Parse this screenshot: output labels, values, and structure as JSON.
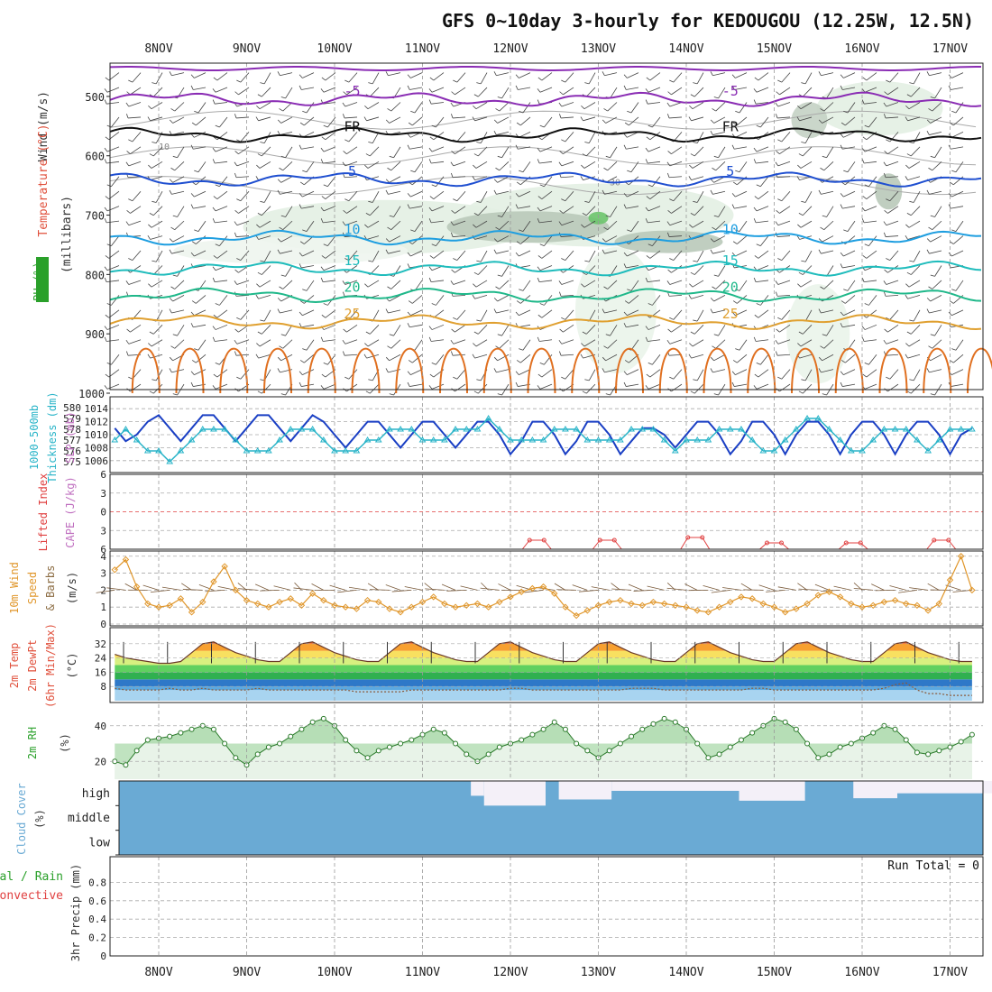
{
  "title": "GFS 0~10day 3-hourly for KEDOUGOU (12.25W, 12.5N)",
  "colors": {
    "temperature_label": "#e0503c",
    "wind_label": "#333333",
    "rh_label": "#2aa02a",
    "slp": "#1a3fc4",
    "thickness": "#29b4c8",
    "lifted_index": "#e04040",
    "cape": "#c070c0",
    "wind10m": "#e0962a",
    "cloud": "#6aaad4",
    "precip_total": "#2aa02a",
    "precip_conv": "#e04040",
    "rh_fill": "#7cc47c",
    "iso_m5": "#8a2cb4",
    "iso_fr": "#111111",
    "iso_5": "#1f4fd0",
    "iso_10": "#1e9ee0",
    "iso_15": "#1fbcbc",
    "iso_20": "#1fb88a",
    "iso_25": "#e0a030",
    "iso_30": "#e07020"
  },
  "side_labels": {
    "upper_wind": "Wind (m/s)",
    "upper_temp": "Temperature (°C)",
    "upper_rh": "RH (%)",
    "upper_millibars": "(millibars)",
    "slp": "SLP (mb)",
    "thickness_1": "1000-500mb",
    "thickness_2": "Thickness (dm)",
    "li": "Lifted Index",
    "cape": "CAPE (J/kg)",
    "w10_1": "10m Wind",
    "w10_2": "Speed",
    "w10_3": "& Barbs",
    "w10_unit": "(m/s)",
    "t2_1": "2m Temp",
    "t2_2": "2m DewPt",
    "t2_3": "(6hr Min/Max)",
    "t2_unit": "(°C)",
    "rh2_1": "2m RH",
    "rh2_unit": "(%)",
    "cloud_1": "Cloud Cover",
    "cloud_unit": "(%)",
    "precip_1": "Total / Rain",
    "precip_2": "Convective",
    "precip_3": "3hr Precip (mm)"
  },
  "run_total": "Run Total = 0",
  "chart_data": [
    {
      "type": "line",
      "name": "upper_air",
      "x_labels": [
        "8NOV",
        "9NOV",
        "10NOV",
        "11NOV",
        "12NOV",
        "13NOV",
        "14NOV",
        "15NOV",
        "16NOV",
        "17NOV"
      ],
      "pressure_ticks": [
        500,
        600,
        700,
        800,
        900,
        1000
      ],
      "ylim": [
        1000,
        450
      ],
      "isotherms": [
        {
          "label": "-5",
          "pressure": 505
        },
        {
          "label": "FR",
          "pressure": 565
        },
        {
          "label": "5",
          "pressure": 640
        },
        {
          "label": "10",
          "pressure": 738
        },
        {
          "label": "15",
          "pressure": 790
        },
        {
          "label": "20",
          "pressure": 835
        },
        {
          "label": "25",
          "pressure": 880
        }
      ],
      "rh_contour_labels": [
        "10",
        "30",
        "50"
      ]
    },
    {
      "type": "line",
      "name": "slp_thickness",
      "slp_ticks": [
        1006,
        1008,
        1010,
        1012,
        1014
      ],
      "thickness_ticks": [
        575,
        576,
        577,
        578,
        579,
        580
      ],
      "slp": [
        1011,
        1009,
        1010,
        1012,
        1013,
        1011,
        1009,
        1011,
        1013,
        1013,
        1011,
        1009,
        1011,
        1013,
        1013,
        1011,
        1009,
        1011,
        1013,
        1012,
        1010,
        1008,
        1010,
        1012,
        1012,
        1010,
        1008,
        1010,
        1012,
        1012,
        1010,
        1008,
        1010,
        1012,
        1012,
        1010,
        1007,
        1009,
        1012,
        1012,
        1010,
        1007,
        1009,
        1012,
        1012,
        1010,
        1007,
        1009,
        1011,
        1011,
        1010,
        1008,
        1010,
        1012,
        1012,
        1010,
        1007,
        1009,
        1012,
        1012,
        1010,
        1007,
        1010,
        1012,
        1012,
        1010,
        1007,
        1010,
        1012,
        1012,
        1010,
        1007,
        1010,
        1012,
        1012,
        1010,
        1007,
        1010,
        1011,
        1011,
        1010
      ],
      "thickness": [
        577,
        578,
        577,
        576,
        576,
        575,
        576,
        577,
        578,
        578,
        578,
        577,
        576,
        576,
        576,
        577,
        578,
        578,
        578,
        577,
        576,
        576,
        576,
        577,
        577,
        578,
        578,
        578,
        577,
        577,
        577,
        578,
        578,
        578,
        579,
        578,
        577,
        577,
        577,
        577,
        578,
        578,
        578,
        577,
        577,
        577,
        577,
        578,
        578,
        578,
        577,
        576,
        577,
        577,
        577,
        578,
        578,
        578,
        577,
        576,
        576,
        577,
        578,
        579,
        579,
        578,
        577,
        576,
        576,
        577,
        578,
        578,
        578,
        577,
        576,
        577,
        578,
        578,
        578,
        577,
        577
      ]
    },
    {
      "type": "line",
      "name": "li_cape",
      "li_ticks": [
        -6,
        -3,
        0,
        3,
        6
      ],
      "cape_events": [
        {
          "day": 4.3,
          "value": 2
        },
        {
          "day": 5.1,
          "value": 2
        },
        {
          "day": 6.1,
          "value": 3
        },
        {
          "day": 7.0,
          "value": 1
        },
        {
          "day": 7.9,
          "value": 1
        },
        {
          "day": 8.9,
          "value": 2
        }
      ]
    },
    {
      "type": "line",
      "name": "wind10m",
      "ylim": [
        0,
        4
      ],
      "ticks": [
        0,
        1,
        2,
        3,
        4
      ],
      "speed": [
        3.2,
        3.8,
        2.2,
        1.2,
        1.0,
        1.1,
        1.5,
        0.7,
        1.3,
        2.5,
        3.4,
        2.0,
        1.4,
        1.2,
        1.0,
        1.3,
        1.5,
        1.1,
        1.8,
        1.4,
        1.1,
        1.0,
        0.9,
        1.4,
        1.3,
        0.9,
        0.7,
        1.0,
        1.3,
        1.6,
        1.2,
        1.0,
        1.1,
        1.2,
        1.0,
        1.3,
        1.6,
        1.9,
        2.1,
        2.2,
        1.8,
        1.0,
        0.5,
        0.8,
        1.1,
        1.3,
        1.4,
        1.2,
        1.1,
        1.3,
        1.2,
        1.1,
        1.0,
        0.8,
        0.7,
        1.0,
        1.3,
        1.6,
        1.5,
        1.2,
        1.0,
        0.7,
        0.9,
        1.2,
        1.7,
        1.9,
        1.6,
        1.2,
        1.0,
        1.1,
        1.3,
        1.4,
        1.2,
        1.1,
        0.8,
        1.2,
        2.6,
        4.0,
        2.0,
        0.9,
        1.3
      ]
    },
    {
      "type": "area",
      "name": "temp2m",
      "ticks": [
        8,
        16,
        24,
        32
      ],
      "ylim": [
        0,
        40
      ],
      "temp": [
        26,
        24,
        23,
        22,
        21,
        21,
        22,
        27,
        32,
        33,
        30,
        27,
        25,
        23,
        22,
        22,
        27,
        32,
        33,
        30,
        27,
        25,
        23,
        22,
        22,
        27,
        32,
        33,
        30,
        27,
        25,
        23,
        22,
        22,
        27,
        32,
        33,
        30,
        27,
        25,
        23,
        22,
        22,
        27,
        32,
        33,
        30,
        27,
        25,
        23,
        22,
        22,
        27,
        32,
        33,
        30,
        27,
        25,
        23,
        22,
        22,
        27,
        32,
        33,
        30,
        27,
        25,
        23,
        22,
        22,
        27,
        32,
        33,
        30,
        27,
        25,
        23,
        22,
        22,
        22,
        22
      ],
      "dewpoint": [
        7,
        6,
        6,
        6,
        6,
        7,
        6,
        6,
        7,
        6,
        6,
        6,
        6,
        7,
        6,
        6,
        6,
        6,
        6,
        6,
        6,
        6,
        5,
        5,
        5,
        5,
        5,
        6,
        6,
        6,
        6,
        6,
        6,
        6,
        6,
        6,
        7,
        7,
        6,
        6,
        6,
        6,
        6,
        6,
        6,
        6,
        6,
        7,
        7,
        7,
        6,
        6,
        6,
        6,
        6,
        6,
        6,
        6,
        7,
        7,
        6,
        6,
        6,
        6,
        6,
        6,
        6,
        6,
        6,
        6,
        7,
        9,
        10,
        6,
        4,
        4,
        3,
        3,
        3,
        3,
        3
      ]
    },
    {
      "type": "area",
      "name": "rh2m",
      "ticks": [
        20,
        40
      ],
      "ylim": [
        10,
        50
      ],
      "values": [
        20,
        18,
        26,
        32,
        33,
        34,
        36,
        38,
        40,
        38,
        30,
        22,
        18,
        24,
        28,
        30,
        34,
        38,
        42,
        44,
        40,
        32,
        26,
        22,
        26,
        28,
        30,
        32,
        35,
        38,
        36,
        30,
        24,
        20,
        24,
        28,
        30,
        32,
        35,
        38,
        42,
        38,
        30,
        26,
        22,
        26,
        30,
        34,
        38,
        41,
        44,
        42,
        38,
        30,
        22,
        24,
        28,
        32,
        36,
        40,
        44,
        42,
        38,
        30,
        22,
        24,
        28,
        30,
        33,
        36,
        40,
        38,
        32,
        25,
        24,
        26,
        28,
        31,
        35,
        40,
        32
      ]
    },
    {
      "type": "heatmap",
      "name": "cloud_cover",
      "levels": [
        "high",
        "middle",
        "low"
      ],
      "high_gaps": [
        {
          "start": 3.3,
          "end": 3.45,
          "frac": 1.0
        },
        {
          "start": 3.55,
          "end": 3.7,
          "frac": 0.4
        },
        {
          "start": 3.7,
          "end": 4.4,
          "frac": 0.0
        },
        {
          "start": 4.55,
          "end": 5.15,
          "frac": 0.25
        },
        {
          "start": 5.15,
          "end": 6.6,
          "frac": 0.6
        },
        {
          "start": 6.6,
          "end": 7.35,
          "frac": 0.2
        },
        {
          "start": 7.9,
          "end": 8.4,
          "frac": 0.3
        },
        {
          "start": 8.4,
          "end": 9.6,
          "frac": 0.5
        }
      ]
    },
    {
      "type": "bar",
      "name": "precip",
      "ticks": [
        0,
        0.2,
        0.4,
        0.6,
        0.8
      ],
      "ylim": [
        0,
        1
      ],
      "values": []
    }
  ]
}
